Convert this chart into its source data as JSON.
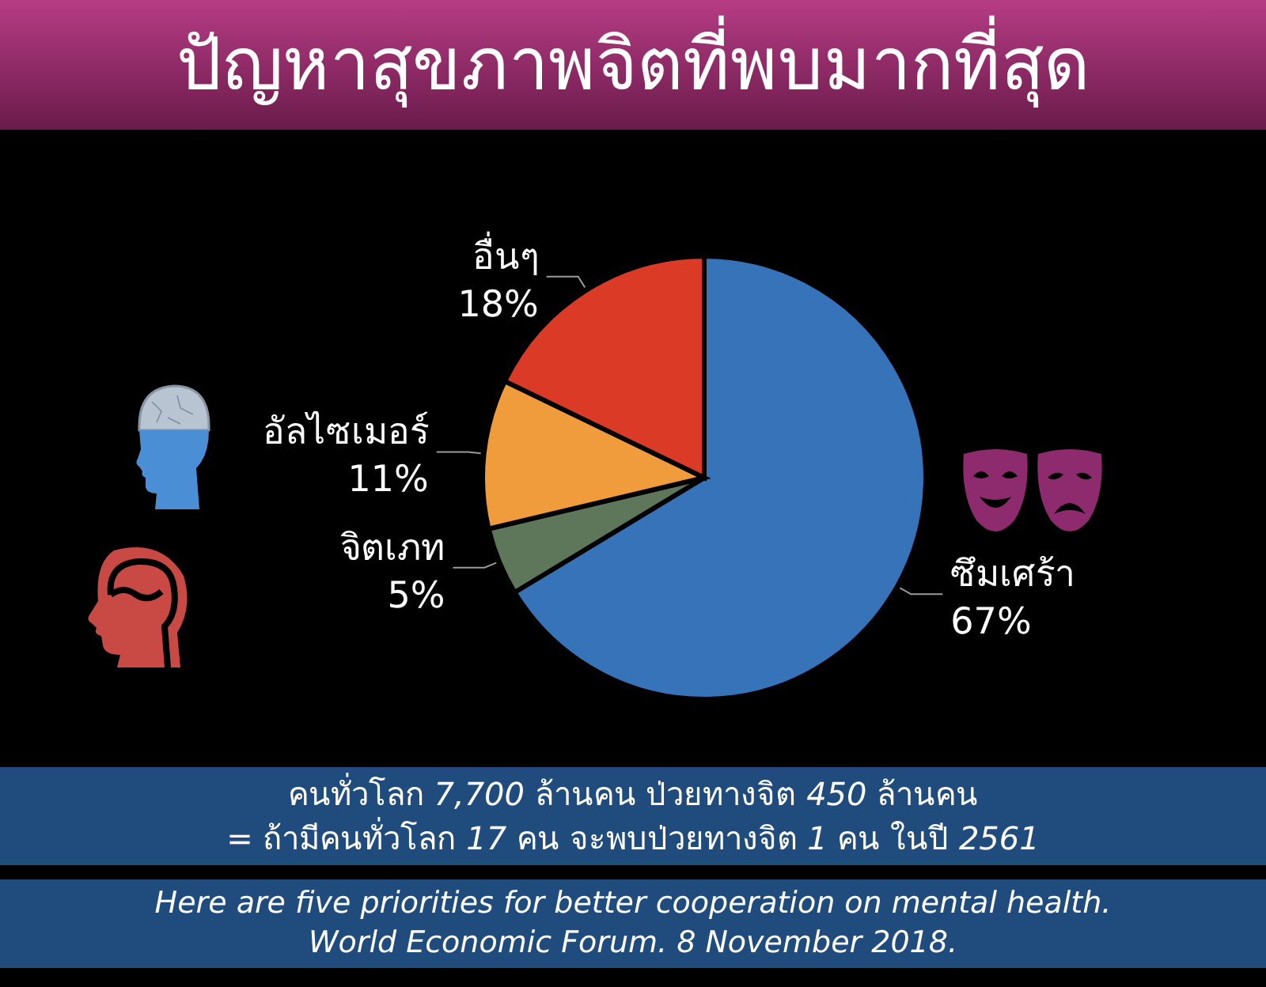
{
  "chart_data": {
    "type": "pie",
    "title": "ปัญหาสุขภาพจิตที่พบมากที่สุด",
    "categories": [
      "ซึมเศร้า",
      "จิตเภท",
      "อัลไซเมอร์",
      "อื่นๆ"
    ],
    "values": [
      67,
      5,
      11,
      18
    ],
    "colors": [
      "#3673b8",
      "#5e7659",
      "#f09c3c",
      "#db3b26"
    ],
    "value_labels": [
      "67%",
      "5%",
      "11%",
      "18%"
    ],
    "annotations": [
      "คนทั่วโลก 7,700 ล้านคน ป่วยทางจิต 450 ล้านคน",
      "= ถ้ามีคนทั่วโลก 17 คน จะพบป่วยทางจิต 1 คน ในปี 2561",
      "Here are five priorities for better cooperation on mental health.",
      "World Economic Forum. 8 November 2018."
    ]
  }
}
